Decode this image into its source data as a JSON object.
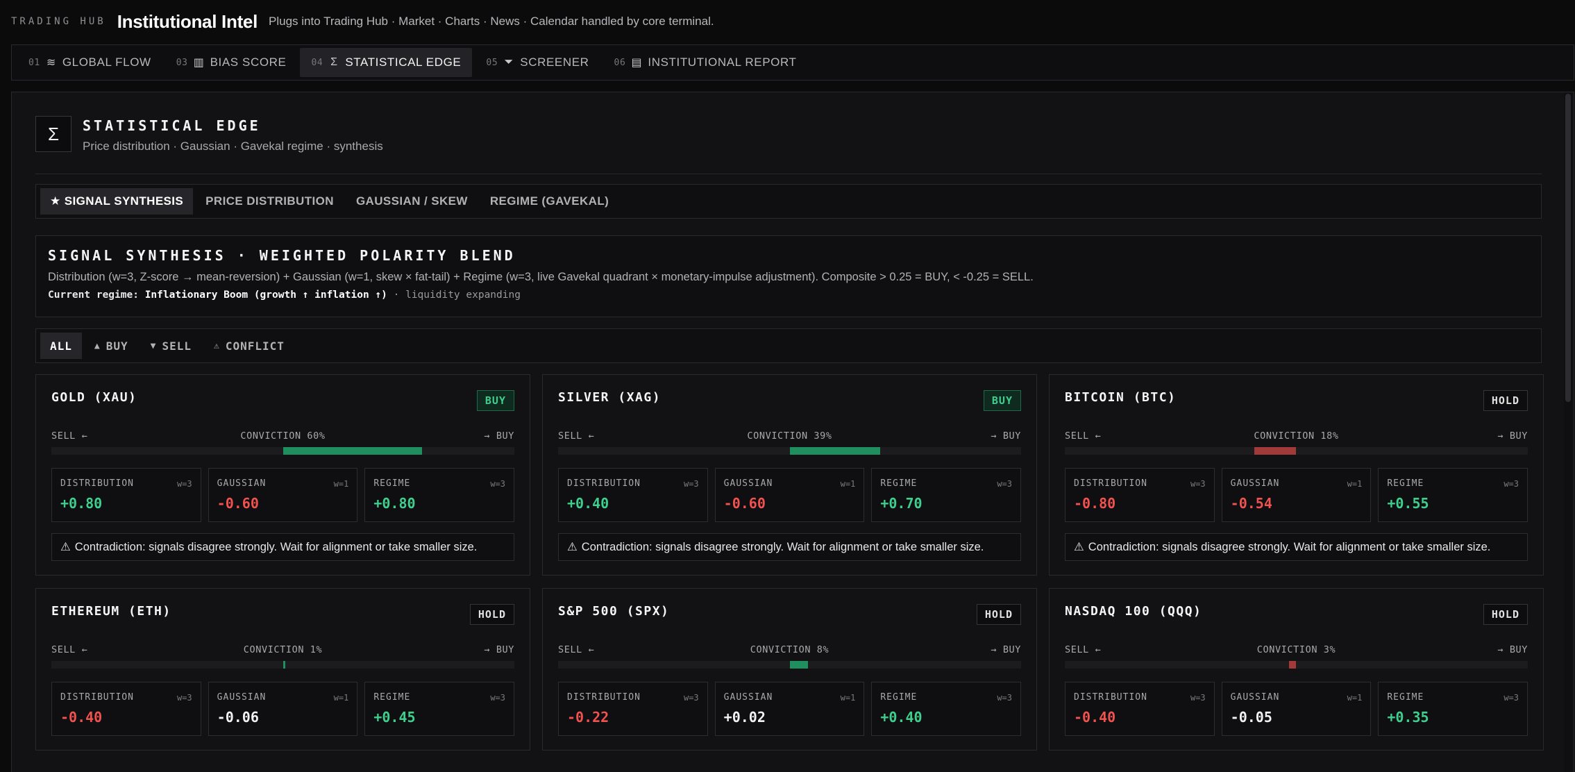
{
  "header": {
    "brand_small": "TRADING HUB",
    "title": "Institutional Intel",
    "subtitle": "Plugs into Trading Hub · Market · Charts · News · Calendar handled by core terminal."
  },
  "nav": {
    "tabs": [
      {
        "num": "01",
        "icon": "layers-icon",
        "glyph": "≋",
        "label": "GLOBAL FLOW"
      },
      {
        "num": "03",
        "icon": "bar-chart-icon",
        "glyph": "▥",
        "label": "BIAS SCORE"
      },
      {
        "num": "04",
        "icon": "sigma-icon",
        "glyph": "Σ",
        "label": "STATISTICAL EDGE",
        "active": true
      },
      {
        "num": "05",
        "icon": "filter-icon",
        "glyph": "⏷",
        "label": "SCREENER"
      },
      {
        "num": "06",
        "icon": "document-icon",
        "glyph": "▤",
        "label": "INSTITUTIONAL REPORT"
      }
    ]
  },
  "section": {
    "icon": "sigma-icon",
    "glyph": "Σ",
    "title": "STATISTICAL EDGE",
    "subtitle": "Price distribution · Gaussian · Gavekal regime · synthesis"
  },
  "subtabs": [
    {
      "label": "★ SIGNAL SYNTHESIS",
      "active": true
    },
    {
      "label": "PRICE DISTRIBUTION"
    },
    {
      "label": "GAUSSIAN / SKEW"
    },
    {
      "label": "REGIME (GAVEKAL)"
    }
  ],
  "synthesis": {
    "title": "SIGNAL SYNTHESIS · WEIGHTED POLARITY BLEND",
    "description": "Distribution (w=3, Z-score → mean-reversion) + Gaussian (w=1, skew × fat-tail) + Regime (w=3, live Gavekal quadrant × monetary-impulse adjustment). Composite > 0.25 = BUY, < -0.25 = SELL.",
    "regime_label": "Current regime:",
    "regime_value": "Inflationary Boom (growth ↑ inflation ↑)",
    "regime_extra": "· liquidity expanding"
  },
  "filters": [
    {
      "icon": "",
      "label": "ALL",
      "active": true
    },
    {
      "icon": "▲",
      "label": "BUY"
    },
    {
      "icon": "▼",
      "label": "SELL"
    },
    {
      "icon": "⚠",
      "label": "CONFLICT"
    }
  ],
  "labels": {
    "sell": "SELL ←",
    "buy": "→ BUY",
    "distribution": "DISTRIBUTION",
    "gaussian": "GAUSSIAN",
    "regime": "REGIME",
    "w3": "w=3",
    "w1": "w=1"
  },
  "cards": [
    {
      "name": "GOLD (XAU)",
      "signal": "BUY",
      "conviction_label": "CONVICTION 60%",
      "conviction": 0.6,
      "direction": "pos",
      "distribution": "+0.80",
      "gaussian": "-0.60",
      "regime": "+0.80",
      "warning": "Contradiction: signals disagree strongly. Wait for alignment or take smaller size."
    },
    {
      "name": "SILVER (XAG)",
      "signal": "BUY",
      "conviction_label": "CONVICTION 39%",
      "conviction": 0.39,
      "direction": "pos",
      "distribution": "+0.40",
      "gaussian": "-0.60",
      "regime": "+0.70",
      "warning": "Contradiction: signals disagree strongly. Wait for alignment or take smaller size."
    },
    {
      "name": "BITCOIN (BTC)",
      "signal": "HOLD",
      "conviction_label": "CONVICTION 18%",
      "conviction": 0.18,
      "direction": "neg",
      "distribution": "-0.80",
      "gaussian": "-0.54",
      "regime": "+0.55",
      "warning": "Contradiction: signals disagree strongly. Wait for alignment or take smaller size."
    },
    {
      "name": "ETHEREUM (ETH)",
      "signal": "HOLD",
      "conviction_label": "CONVICTION 1%",
      "conviction": 0.01,
      "direction": "pos",
      "distribution": "-0.40",
      "gaussian": "-0.06",
      "regime": "+0.45"
    },
    {
      "name": "S&P 500 (SPX)",
      "signal": "HOLD",
      "conviction_label": "CONVICTION 8%",
      "conviction": 0.08,
      "direction": "pos",
      "distribution": "-0.22",
      "gaussian": "+0.02",
      "regime": "+0.40"
    },
    {
      "name": "NASDAQ 100 (QQQ)",
      "signal": "HOLD",
      "conviction_label": "CONVICTION 3%",
      "conviction": 0.03,
      "direction": "neg",
      "distribution": "-0.40",
      "gaussian": "-0.05",
      "regime": "+0.35"
    }
  ],
  "colors": {
    "buy": "#3ecf8e",
    "sell": "#f0524f",
    "bar_positive": "#1f8f5f",
    "bar_negative": "#a33a3a"
  }
}
